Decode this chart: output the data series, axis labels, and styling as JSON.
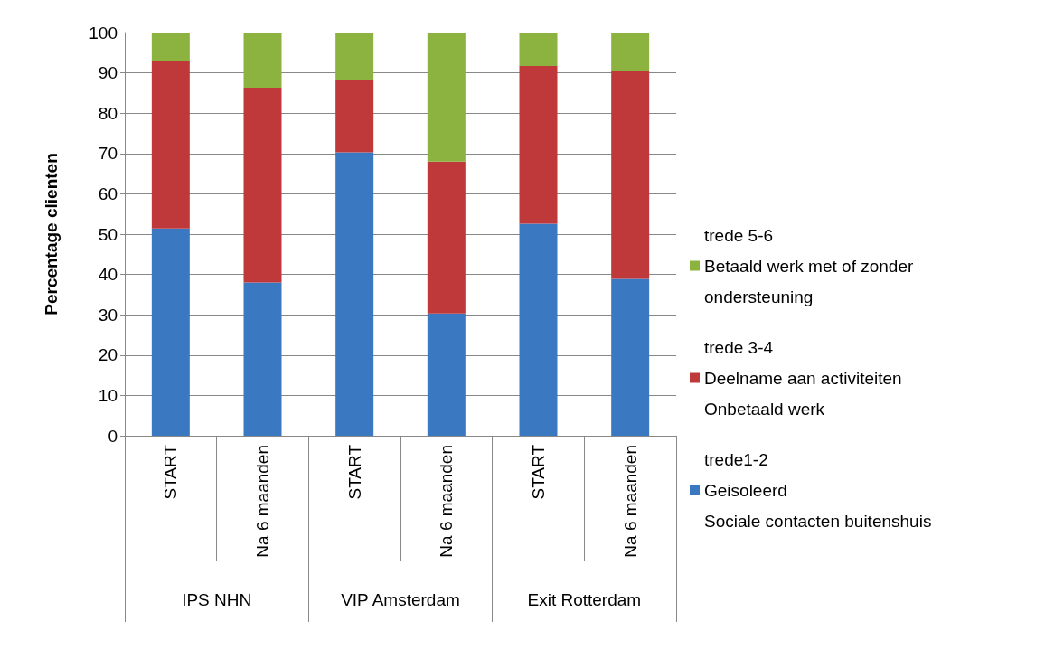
{
  "chart_data": {
    "type": "bar",
    "stacked": true,
    "ylabel": "Percentage clienten",
    "categories": [
      "START",
      "Na 6 maanden",
      "START",
      "Na 6 maanden",
      "START",
      "Na 6 maanden"
    ],
    "annotations": [
      "IPS NHN",
      "VIP Amsterdam",
      "Exit Rotterdam"
    ],
    "series": [
      {
        "name": "trede1-2\nGeisoleerd\nSociale contacten buitenshuis",
        "color": "#3a78c2",
        "values": [
          51.4,
          38.0,
          70.3,
          30.3,
          52.6,
          38.9
        ]
      },
      {
        "name": "trede 3-4\nDeelname aan activiteiten\nOnbetaald werk",
        "color": "#c0393a",
        "values": [
          41.6,
          48.3,
          17.8,
          37.7,
          39.1,
          51.7
        ]
      },
      {
        "name": "trede 5-6\nBetaald werk met of zonder\nondersteuning",
        "color": "#8cb33f",
        "values": [
          7.0,
          13.7,
          11.9,
          32.0,
          8.3,
          9.4
        ]
      }
    ],
    "ylim": [
      0,
      100
    ],
    "yticks": [
      0,
      10,
      20,
      30,
      40,
      50,
      60,
      70,
      80,
      90,
      100
    ],
    "grid": "y",
    "legend": "right"
  }
}
